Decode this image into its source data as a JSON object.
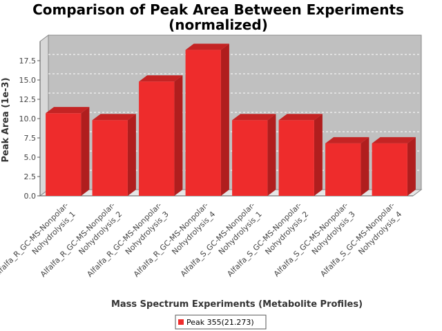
{
  "chart_data": {
    "type": "bar",
    "title_lines": [
      "Comparison of Peak Area Between Experiments",
      "(normalized)"
    ],
    "xlabel": "Mass Spectrum Experiments (Metabolite Profiles)",
    "ylabel": "Peak Area (1e-3)",
    "categories": [
      [
        "Alfalfa_R_GC-MS-Nonpolar-",
        "Nohydrolysis_1"
      ],
      [
        "Alfalfa_R_GC-MS-Nonpolar-",
        "Nohydrolysis_2"
      ],
      [
        "Alfalfa_R_GC-MS-Nonpolar-",
        "Nohydrolysis_3"
      ],
      [
        "Alfalfa_R_GC-MS-Nonpolar-",
        "Nohydrolysis_4"
      ],
      [
        "Alfalfa_S_GC-MS-Nonpolar-",
        "Nohydrolysis_1"
      ],
      [
        "Alfalfa_S_GC-MS-Nonpolar-",
        "Nohydrolysis_2"
      ],
      [
        "Alfalfa_S_GC-MS-Nonpolar-",
        "Nohydrolysis_3"
      ],
      [
        "Alfalfa_S_GC-MS-Nonpolar-",
        "Nohydrolysis_4"
      ]
    ],
    "series": [
      {
        "name": "Peak 355(21.273)",
        "color": "#ee2c2c",
        "values": [
          10.7,
          9.8,
          14.8,
          18.9,
          9.8,
          9.8,
          6.8,
          6.8
        ]
      }
    ],
    "ylim": [
      0,
      20
    ],
    "yticks": [
      "0.0",
      "2.5",
      "5.0",
      "7.5",
      "10.0",
      "12.5",
      "15.0",
      "17.5"
    ],
    "grid": true,
    "legend_position": "bottom",
    "colors": {
      "plot_background": "#c0c0c0",
      "bar": "#ee2c2c"
    }
  }
}
